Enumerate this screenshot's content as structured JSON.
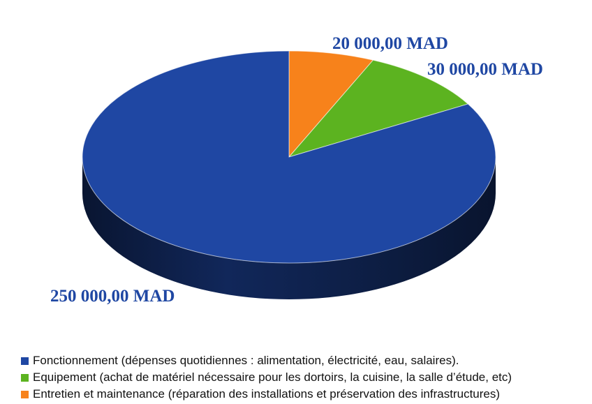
{
  "chart_data": {
    "type": "pie",
    "style": "3d",
    "currency": "MAD",
    "legend_position": "bottom",
    "series": [
      {
        "name": "Fonctionnement (dépenses quotidiennes : alimentation, électricité, eau, salaires).",
        "value": 250000,
        "label": "250 000,00 MAD",
        "color": "#1f47a3"
      },
      {
        "name": "Equipement (achat de matériel nécessaire pour les dortoirs, la cuisine, la salle d’étude, etc)",
        "value": 30000,
        "label": "30 000,00 MAD",
        "color": "#5cb320"
      },
      {
        "name": "Entretien et maintenance (réparation des installations et préservation des infrastructures)",
        "value": 20000,
        "label": "20 000,00 MAD",
        "color": "#f7821b"
      }
    ]
  }
}
